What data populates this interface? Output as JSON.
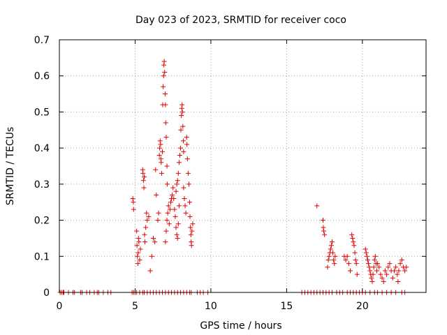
{
  "chart_data": {
    "type": "scatter",
    "title": "Day 023 of 2023, SRMTID for receiver coco",
    "xlabel": "GPS time / hours",
    "ylabel": "SRMTID / TECUs",
    "xlim": [
      0,
      24.2
    ],
    "ylim": [
      0,
      0.7
    ],
    "xticks": [
      0,
      5,
      10,
      15,
      20
    ],
    "xtick_labels": [
      "0",
      "5",
      "10",
      "15",
      "20"
    ],
    "yticks": [
      0,
      0.1,
      0.2,
      0.3,
      0.4,
      0.5,
      0.6,
      0.7
    ],
    "ytick_labels": [
      "0",
      "0.1",
      "0.2",
      "0.3",
      "0.4",
      "0.5",
      "0.6",
      "0.7"
    ],
    "grid": true,
    "marker": "+",
    "marker_color": "#e00000",
    "series": [
      {
        "name": "SRMTID",
        "points": [
          [
            0.05,
            0
          ],
          [
            0.15,
            0
          ],
          [
            0.25,
            0
          ],
          [
            0.3,
            0
          ],
          [
            0.6,
            0
          ],
          [
            0.9,
            0
          ],
          [
            1.0,
            0
          ],
          [
            1.4,
            0
          ],
          [
            1.5,
            0
          ],
          [
            1.8,
            0
          ],
          [
            2.0,
            0
          ],
          [
            2.3,
            0
          ],
          [
            2.5,
            0
          ],
          [
            2.6,
            0
          ],
          [
            2.9,
            0
          ],
          [
            3.2,
            0
          ],
          [
            3.4,
            0
          ],
          [
            4.8,
            0
          ],
          [
            4.9,
            0
          ],
          [
            5.0,
            0
          ],
          [
            5.1,
            0
          ],
          [
            5.3,
            0
          ],
          [
            5.5,
            0
          ],
          [
            5.6,
            0
          ],
          [
            5.8,
            0
          ],
          [
            6.0,
            0
          ],
          [
            6.2,
            0
          ],
          [
            6.4,
            0
          ],
          [
            6.6,
            0
          ],
          [
            6.8,
            0
          ],
          [
            7.0,
            0
          ],
          [
            7.2,
            0
          ],
          [
            7.4,
            0
          ],
          [
            7.6,
            0
          ],
          [
            7.8,
            0
          ],
          [
            8.0,
            0
          ],
          [
            8.2,
            0
          ],
          [
            8.4,
            0
          ],
          [
            8.6,
            0
          ],
          [
            8.7,
            0
          ],
          [
            9.1,
            0
          ],
          [
            9.3,
            0
          ],
          [
            9.5,
            0
          ],
          [
            9.8,
            0
          ],
          [
            16.0,
            0
          ],
          [
            16.2,
            0
          ],
          [
            16.4,
            0
          ],
          [
            16.6,
            0
          ],
          [
            16.8,
            0
          ],
          [
            17.0,
            0
          ],
          [
            17.2,
            0
          ],
          [
            17.4,
            0
          ],
          [
            17.6,
            0
          ],
          [
            17.8,
            0
          ],
          [
            18.0,
            0
          ],
          [
            18.3,
            0
          ],
          [
            18.5,
            0
          ],
          [
            18.7,
            0
          ],
          [
            19.0,
            0
          ],
          [
            19.2,
            0
          ],
          [
            19.4,
            0
          ],
          [
            19.6,
            0
          ],
          [
            19.8,
            0
          ],
          [
            20.0,
            0
          ],
          [
            20.2,
            0
          ],
          [
            20.5,
            0
          ],
          [
            20.8,
            0
          ],
          [
            21.0,
            0
          ],
          [
            21.3,
            0
          ],
          [
            21.6,
            0
          ],
          [
            21.9,
            0
          ],
          [
            22.2,
            0
          ],
          [
            22.6,
            0
          ],
          [
            22.8,
            0
          ],
          [
            4.85,
            0.26
          ],
          [
            4.88,
            0.25
          ],
          [
            4.9,
            0.23
          ],
          [
            5.1,
            0.17
          ],
          [
            5.12,
            0.13
          ],
          [
            5.15,
            0.1
          ],
          [
            5.18,
            0.08
          ],
          [
            5.2,
            0.11
          ],
          [
            5.22,
            0.15
          ],
          [
            5.25,
            0.14
          ],
          [
            5.3,
            0.09
          ],
          [
            5.35,
            0.12
          ],
          [
            5.5,
            0.34
          ],
          [
            5.52,
            0.33
          ],
          [
            5.55,
            0.31
          ],
          [
            5.58,
            0.29
          ],
          [
            5.6,
            0.32
          ],
          [
            5.62,
            0.16
          ],
          [
            5.65,
            0.14
          ],
          [
            5.7,
            0.18
          ],
          [
            5.75,
            0.22
          ],
          [
            5.8,
            0.2
          ],
          [
            5.9,
            0.21
          ],
          [
            6.0,
            0.06
          ],
          [
            6.1,
            0.1
          ],
          [
            6.2,
            0.15
          ],
          [
            6.3,
            0.14
          ],
          [
            6.35,
            0.34
          ],
          [
            6.4,
            0.27
          ],
          [
            6.5,
            0.2
          ],
          [
            6.55,
            0.22
          ],
          [
            6.6,
            0.38
          ],
          [
            6.62,
            0.4
          ],
          [
            6.65,
            0.42
          ],
          [
            6.68,
            0.41
          ],
          [
            6.7,
            0.37
          ],
          [
            6.72,
            0.36
          ],
          [
            6.75,
            0.33
          ],
          [
            6.8,
            0.39
          ],
          [
            6.82,
            0.52
          ],
          [
            6.85,
            0.57
          ],
          [
            6.88,
            0.6
          ],
          [
            6.9,
            0.63
          ],
          [
            6.92,
            0.64
          ],
          [
            6.95,
            0.61
          ],
          [
            6.98,
            0.55
          ],
          [
            7.0,
            0.52
          ],
          [
            7.02,
            0.47
          ],
          [
            7.05,
            0.43
          ],
          [
            7.1,
            0.35
          ],
          [
            7.12,
            0.3
          ],
          [
            7.0,
            0.14
          ],
          [
            7.05,
            0.17
          ],
          [
            7.1,
            0.2
          ],
          [
            7.15,
            0.22
          ],
          [
            7.2,
            0.24
          ],
          [
            7.25,
            0.19
          ],
          [
            7.3,
            0.23
          ],
          [
            7.35,
            0.25
          ],
          [
            7.4,
            0.26
          ],
          [
            7.45,
            0.27
          ],
          [
            7.5,
            0.29
          ],
          [
            7.55,
            0.26
          ],
          [
            7.6,
            0.23
          ],
          [
            7.65,
            0.21
          ],
          [
            7.7,
            0.18
          ],
          [
            7.75,
            0.16
          ],
          [
            7.8,
            0.15
          ],
          [
            7.85,
            0.19
          ],
          [
            7.9,
            0.24
          ],
          [
            7.7,
            0.28
          ],
          [
            7.75,
            0.3
          ],
          [
            7.8,
            0.31
          ],
          [
            7.85,
            0.33
          ],
          [
            7.9,
            0.36
          ],
          [
            7.95,
            0.38
          ],
          [
            8.0,
            0.4
          ],
          [
            8.02,
            0.45
          ],
          [
            8.05,
            0.49
          ],
          [
            8.08,
            0.51
          ],
          [
            8.1,
            0.52
          ],
          [
            8.12,
            0.5
          ],
          [
            8.15,
            0.46
          ],
          [
            8.18,
            0.42
          ],
          [
            8.2,
            0.39
          ],
          [
            8.2,
            0.29
          ],
          [
            8.25,
            0.26
          ],
          [
            8.3,
            0.24
          ],
          [
            8.35,
            0.22
          ],
          [
            8.4,
            0.43
          ],
          [
            8.42,
            0.41
          ],
          [
            8.45,
            0.37
          ],
          [
            8.5,
            0.33
          ],
          [
            8.55,
            0.3
          ],
          [
            8.6,
            0.25
          ],
          [
            8.62,
            0.21
          ],
          [
            8.65,
            0.18
          ],
          [
            8.68,
            0.16
          ],
          [
            8.7,
            0.14
          ],
          [
            8.72,
            0.13
          ],
          [
            8.75,
            0.17
          ],
          [
            8.8,
            0.19
          ],
          [
            17.0,
            0.24
          ],
          [
            17.4,
            0.2
          ],
          [
            17.42,
            0.18
          ],
          [
            17.45,
            0.17
          ],
          [
            17.5,
            0.16
          ],
          [
            17.7,
            0.07
          ],
          [
            17.75,
            0.09
          ],
          [
            17.8,
            0.1
          ],
          [
            17.85,
            0.11
          ],
          [
            17.9,
            0.12
          ],
          [
            17.95,
            0.13
          ],
          [
            18.0,
            0.14
          ],
          [
            18.05,
            0.11
          ],
          [
            18.1,
            0.09
          ],
          [
            18.15,
            0.08
          ],
          [
            18.2,
            0.1
          ],
          [
            18.8,
            0.1
          ],
          [
            18.9,
            0.09
          ],
          [
            19.0,
            0.1
          ],
          [
            19.1,
            0.08
          ],
          [
            19.2,
            0.06
          ],
          [
            19.3,
            0.16
          ],
          [
            19.35,
            0.15
          ],
          [
            19.4,
            0.14
          ],
          [
            19.45,
            0.13
          ],
          [
            19.5,
            0.11
          ],
          [
            19.55,
            0.09
          ],
          [
            19.6,
            0.08
          ],
          [
            19.65,
            0.05
          ],
          [
            20.2,
            0.12
          ],
          [
            20.25,
            0.11
          ],
          [
            20.3,
            0.1
          ],
          [
            20.35,
            0.09
          ],
          [
            20.4,
            0.08
          ],
          [
            20.45,
            0.07
          ],
          [
            20.5,
            0.06
          ],
          [
            20.55,
            0.05
          ],
          [
            20.6,
            0.04
          ],
          [
            20.65,
            0.03
          ],
          [
            20.7,
            0.05
          ],
          [
            20.75,
            0.07
          ],
          [
            20.8,
            0.09
          ],
          [
            20.85,
            0.1
          ],
          [
            20.9,
            0.08
          ],
          [
            20.95,
            0.06
          ],
          [
            21.0,
            0.08
          ],
          [
            21.1,
            0.07
          ],
          [
            21.2,
            0.05
          ],
          [
            21.3,
            0.04
          ],
          [
            21.4,
            0.03
          ],
          [
            21.5,
            0.06
          ],
          [
            21.6,
            0.05
          ],
          [
            21.7,
            0.07
          ],
          [
            21.8,
            0.08
          ],
          [
            21.9,
            0.06
          ],
          [
            22.0,
            0.04
          ],
          [
            22.1,
            0.06
          ],
          [
            22.2,
            0.07
          ],
          [
            22.3,
            0.05
          ],
          [
            22.35,
            0.03
          ],
          [
            22.4,
            0.06
          ],
          [
            22.5,
            0.08
          ],
          [
            22.6,
            0.09
          ],
          [
            22.7,
            0.07
          ],
          [
            22.8,
            0.06
          ],
          [
            22.9,
            0.07
          ]
        ]
      }
    ]
  }
}
